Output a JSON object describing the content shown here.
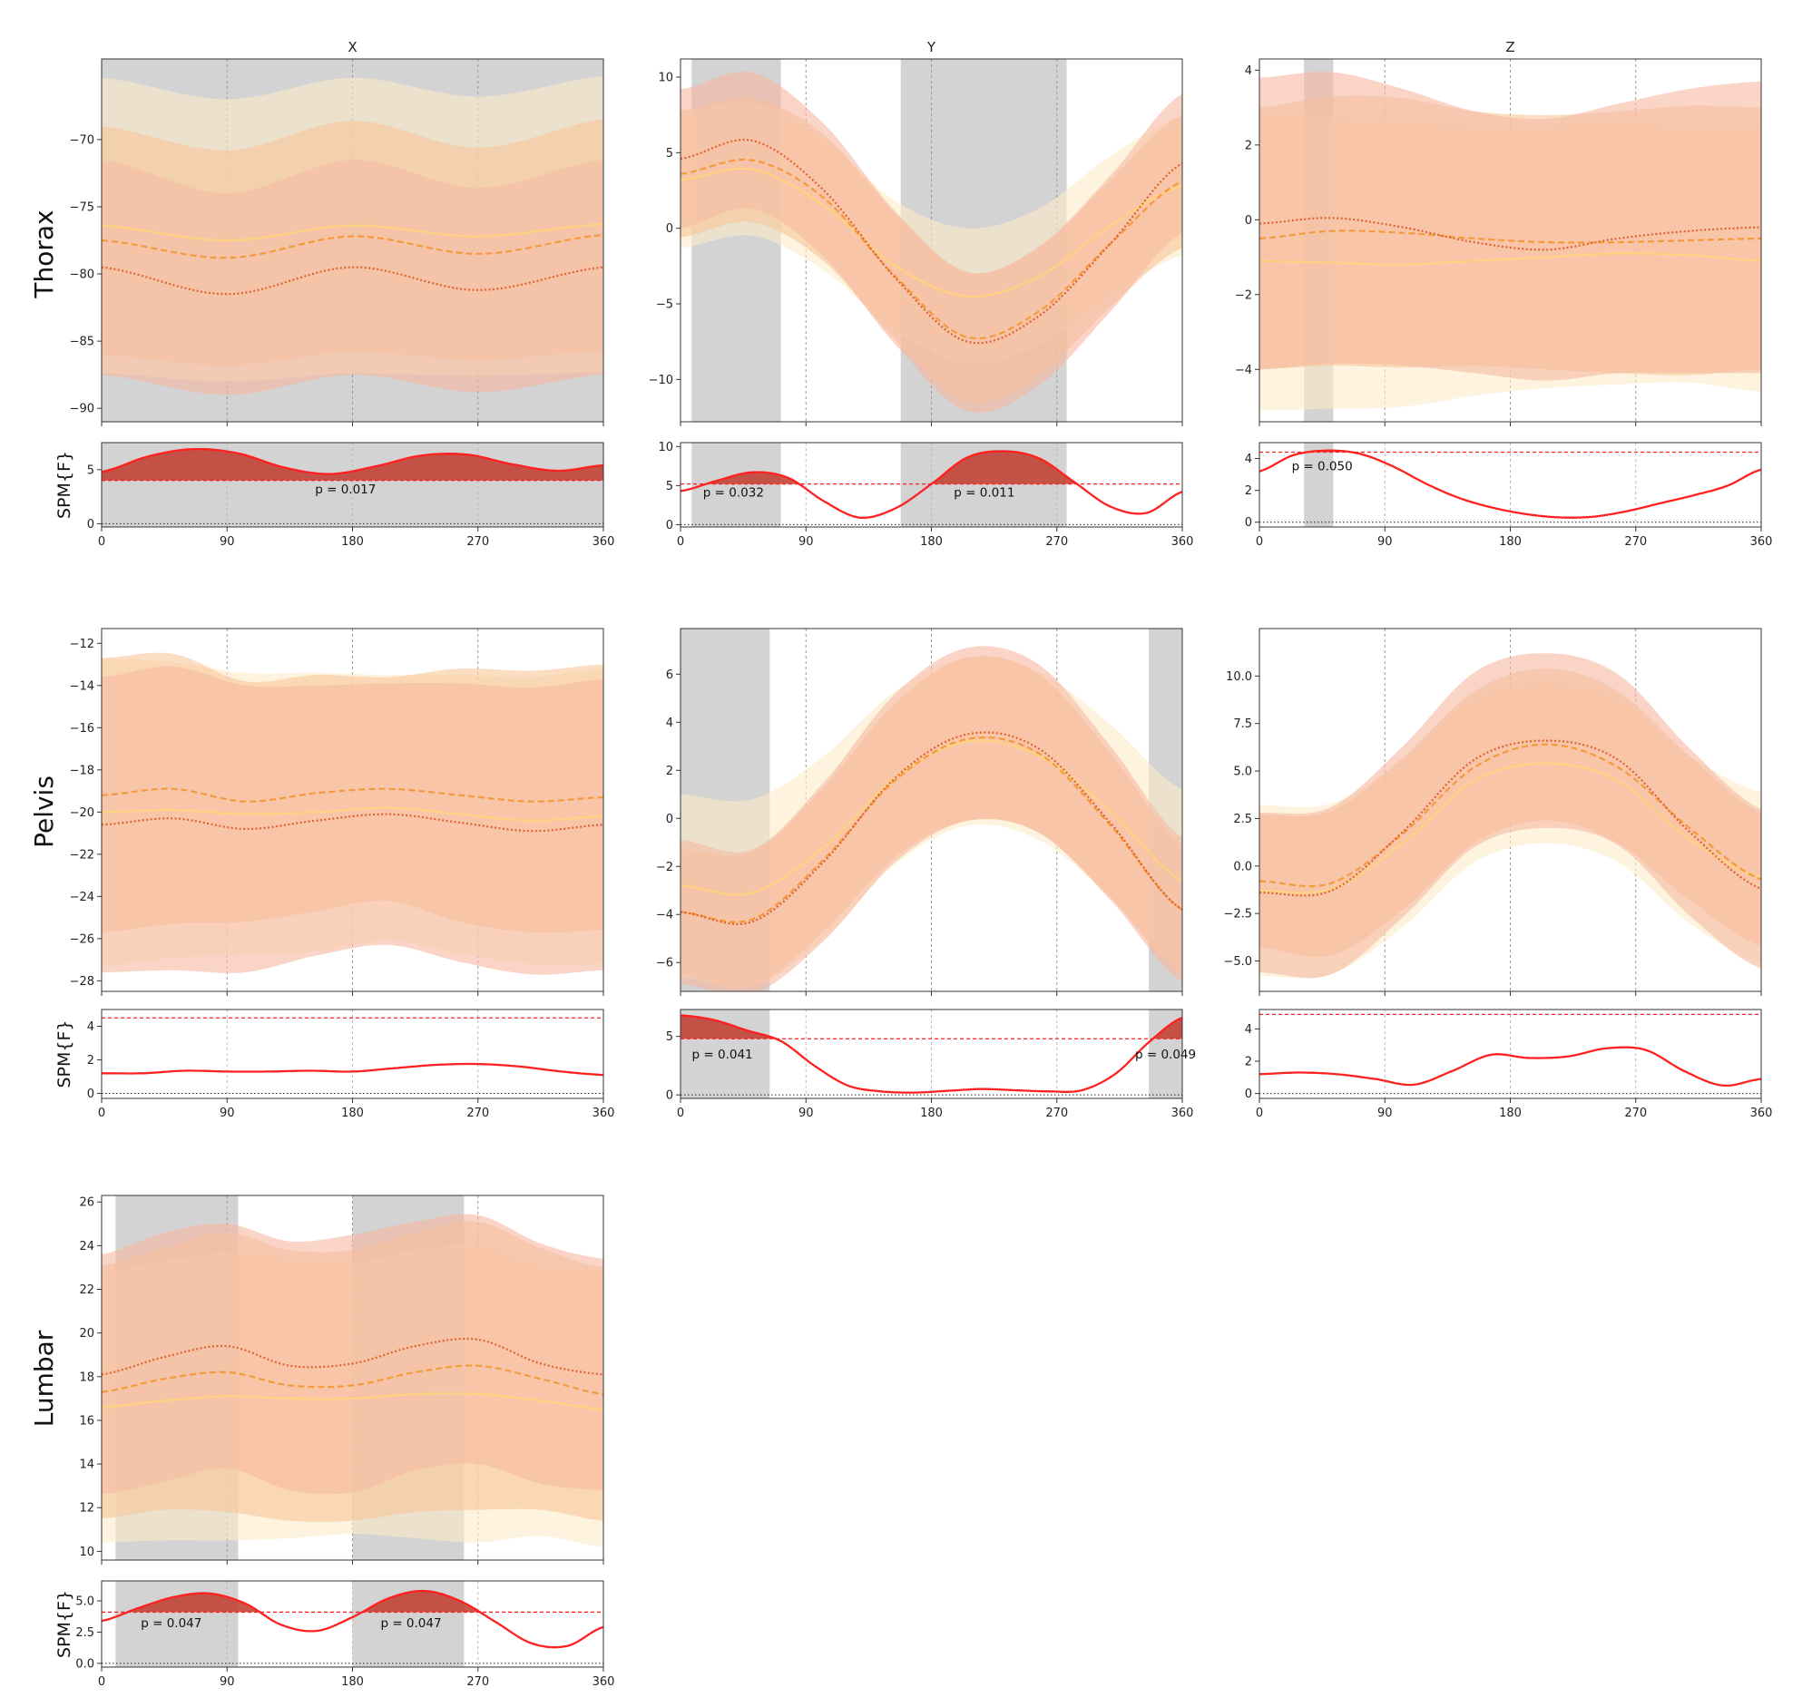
{
  "chart_data": {
    "type": "line",
    "column_titles": [
      "X",
      "Y",
      "Z"
    ],
    "row_labels": [
      "Thorax",
      "Pelvis",
      "Lumbar"
    ],
    "spm_label": "SPM{F}",
    "x_ticks": [
      0,
      90,
      180,
      270,
      360
    ],
    "xlim": [
      0,
      360
    ],
    "series_styles": [
      {
        "name": "series-1",
        "color": "#FFD27F",
        "dash": "solid",
        "band": "#FCEBC8"
      },
      {
        "name": "series-2",
        "color": "#F59A3B",
        "dash": "dashed",
        "band": "#F9C79A"
      },
      {
        "name": "series-3",
        "color": "#E0622E",
        "dash": "dotted",
        "band": "#F7B9A2"
      }
    ],
    "spm_color": "#FF2020",
    "fill_color": "#C0392B",
    "shade_color": "#D3D3D3",
    "panels": [
      {
        "row": "Thorax",
        "col": "X",
        "ylim": [
          -91,
          -64
        ],
        "yticks": [
          -90,
          -85,
          -80,
          -75,
          -70
        ],
        "shade": [
          [
            0,
            360
          ]
        ],
        "series": [
          {
            "name": "series-1",
            "mean": [
              -76.4,
              -77.5,
              -76.4,
              -77.2,
              -76.3
            ],
            "sd": [
              11.0,
              10.5,
              11.0,
              10.4,
              11.0
            ]
          },
          {
            "name": "series-2",
            "mean": [
              -77.5,
              -78.8,
              -77.2,
              -78.5,
              -77.1
            ],
            "sd": [
              8.5,
              8.0,
              8.6,
              7.9,
              8.6
            ]
          },
          {
            "name": "series-3",
            "mean": [
              -79.5,
              -81.5,
              -79.5,
              -81.2,
              -79.5
            ],
            "sd": [
              8.0,
              7.5,
              8.0,
              7.6,
              8.0
            ]
          }
        ],
        "spm": {
          "ylim": [
            -0.3,
            7.5
          ],
          "yticks": [
            0,
            5
          ],
          "threshold": 4.0,
          "curve": [
            4.8,
            6.2,
            6.9,
            6.5,
            5.2,
            4.6,
            5.3,
            6.3,
            6.4,
            5.5,
            4.9,
            5.4
          ],
          "clusters": [
            {
              "label": "p = 0.017",
              "label_x": 175,
              "label_y": 2.8
            }
          ]
        }
      },
      {
        "row": "Thorax",
        "col": "Y",
        "ylim": [
          -12.8,
          11.2
        ],
        "yticks": [
          -10,
          -5,
          0,
          5,
          10
        ],
        "shade": [
          [
            8,
            72
          ],
          [
            158,
            277
          ]
        ],
        "series": [
          {
            "name": "series-1",
            "mean": [
              3.2,
              3.9,
              1.5,
              -2.5,
              -4.5,
              -3.2,
              0.2,
              2.8
            ],
            "sd": [
              4.5,
              4.4,
              4.3,
              4.3,
              4.5,
              4.5,
              4.6,
              4.6
            ]
          },
          {
            "name": "series-2",
            "mean": [
              3.6,
              4.5,
              2.0,
              -3.2,
              -7.2,
              -5.5,
              -1.0,
              3.1
            ],
            "sd": [
              4.2,
              4.1,
              4.2,
              4.2,
              4.3,
              4.2,
              4.2,
              4.4
            ]
          },
          {
            "name": "series-3",
            "mean": [
              4.6,
              5.8,
              2.5,
              -3.3,
              -7.5,
              -5.8,
              -1.0,
              4.3
            ],
            "sd": [
              4.6,
              4.5,
              4.4,
              4.4,
              4.6,
              4.6,
              4.5,
              4.6
            ]
          }
        ],
        "spm": {
          "ylim": [
            -0.3,
            10.5
          ],
          "yticks": [
            0,
            5,
            10
          ],
          "threshold": 5.2,
          "curve": [
            4.3,
            5.6,
            6.7,
            6.0,
            3.0,
            0.9,
            2.1,
            5.2,
            8.6,
            9.4,
            8.5,
            5.4,
            2.3,
            1.5,
            4.2
          ],
          "clusters": [
            {
              "label": "p = 0.032",
              "label_x": 38,
              "label_y": 3.6
            },
            {
              "label": "p = 0.011",
              "label_x": 218,
              "label_y": 3.6
            }
          ]
        }
      },
      {
        "row": "Thorax",
        "col": "Z",
        "ylim": [
          -5.4,
          4.3
        ],
        "yticks": [
          -4,
          -2,
          0,
          2,
          4
        ],
        "shade": [
          [
            32,
            53
          ]
        ],
        "series": [
          {
            "name": "series-1",
            "mean": [
              -1.1,
              -1.15,
              -1.2,
              -1.1,
              -1.0,
              -0.9,
              -0.95,
              -1.1
            ],
            "sd": [
              4.0,
              3.9,
              3.8,
              3.6,
              3.5,
              3.5,
              3.4,
              3.5
            ]
          },
          {
            "name": "series-2",
            "mean": [
              -0.5,
              -0.3,
              -0.35,
              -0.5,
              -0.6,
              -0.6,
              -0.55,
              -0.5
            ],
            "sd": [
              3.5,
              3.6,
              3.6,
              3.4,
              3.4,
              3.5,
              3.6,
              3.5
            ]
          },
          {
            "name": "series-3",
            "mean": [
              -0.1,
              0.05,
              -0.2,
              -0.6,
              -0.8,
              -0.5,
              -0.3,
              -0.2
            ],
            "sd": [
              3.9,
              3.9,
              3.7,
              3.5,
              3.5,
              3.6,
              3.8,
              3.9
            ]
          }
        ],
        "spm": {
          "ylim": [
            -0.3,
            5.0
          ],
          "yticks": [
            0,
            2,
            4
          ],
          "threshold": 4.4,
          "curve": [
            3.2,
            4.2,
            4.5,
            4.3,
            3.5,
            2.4,
            1.5,
            0.9,
            0.5,
            0.3,
            0.35,
            0.7,
            1.2,
            1.7,
            2.3,
            3.3
          ],
          "clusters": [
            {
              "label": "p = 0.050",
              "label_x": 45,
              "label_y": 3.25
            }
          ]
        }
      },
      {
        "row": "Pelvis",
        "col": "X",
        "ylim": [
          -28.5,
          -11.3
        ],
        "yticks": [
          -28,
          -26,
          -24,
          -22,
          -20,
          -18,
          -16,
          -14,
          -12
        ],
        "shade": [],
        "series": [
          {
            "name": "series-1",
            "mean": [
              -20.0,
              -19.9,
              -20.1,
              -20.0,
              -19.8,
              -20.1,
              -20.4,
              -20.2
            ],
            "sd": [
              7.3,
              7.0,
              6.7,
              6.6,
              6.3,
              6.6,
              6.8,
              7.0
            ]
          },
          {
            "name": "series-2",
            "mean": [
              -19.2,
              -18.9,
              -19.5,
              -19.1,
              -18.9,
              -19.2,
              -19.5,
              -19.3
            ],
            "sd": [
              6.5,
              6.4,
              5.7,
              5.6,
              5.3,
              6.0,
              6.2,
              6.3
            ]
          },
          {
            "name": "series-3",
            "mean": [
              -20.6,
              -20.3,
              -20.8,
              -20.4,
              -20.1,
              -20.5,
              -20.9,
              -20.6
            ],
            "sd": [
              7.0,
              7.2,
              6.8,
              6.4,
              6.2,
              6.6,
              6.8,
              6.9
            ]
          }
        ],
        "spm": {
          "ylim": [
            -0.3,
            5.0
          ],
          "yticks": [
            0,
            2,
            4
          ],
          "threshold": 4.5,
          "curve": [
            1.2,
            1.2,
            1.35,
            1.3,
            1.3,
            1.35,
            1.3,
            1.5,
            1.7,
            1.75,
            1.6,
            1.3,
            1.1
          ],
          "clusters": []
        }
      },
      {
        "row": "Pelvis",
        "col": "Y",
        "ylim": [
          -7.2,
          7.9
        ],
        "yticks": [
          -6,
          -4,
          -2,
          0,
          2,
          4,
          6
        ],
        "shade": [
          [
            0,
            64
          ],
          [
            336,
            360
          ]
        ],
        "series": [
          {
            "name": "series-1",
            "mean": [
              -2.8,
              -3.1,
              -1.2,
              1.7,
              3.2,
              2.6,
              0.3,
              -2.6
            ],
            "sd": [
              3.8,
              3.9,
              3.8,
              3.6,
              3.5,
              3.5,
              3.6,
              3.8
            ]
          },
          {
            "name": "series-2",
            "mean": [
              -3.9,
              -4.2,
              -1.7,
              1.6,
              3.3,
              2.7,
              -0.3,
              -3.8
            ],
            "sd": [
              2.6,
              2.8,
              3.0,
              3.2,
              3.4,
              3.3,
              3.0,
              2.7
            ]
          },
          {
            "name": "series-3",
            "mean": [
              -3.9,
              -4.3,
              -1.8,
              1.7,
              3.5,
              2.9,
              -0.2,
              -3.8
            ],
            "sd": [
              3.0,
              3.0,
              3.3,
              3.5,
              3.6,
              3.5,
              3.2,
              3.0
            ]
          }
        ],
        "spm": {
          "ylim": [
            -0.3,
            7.3
          ],
          "yticks": [
            0,
            5
          ],
          "threshold": 4.8,
          "curve": [
            6.8,
            6.4,
            5.5,
            4.6,
            2.5,
            0.8,
            0.3,
            0.2,
            0.35,
            0.5,
            0.4,
            0.3,
            0.4,
            1.8,
            4.5,
            6.6
          ],
          "clusters": [
            {
              "label": "p = 0.041",
              "label_x": 30,
              "label_y": 3.1
            },
            {
              "label": "p = 0.049",
              "label_x": 348,
              "label_y": 3.1
            }
          ]
        }
      },
      {
        "row": "Pelvis",
        "col": "Z",
        "ylim": [
          -6.6,
          12.5
        ],
        "yticks": [
          -5.0,
          -2.5,
          0.0,
          2.5,
          5.0,
          7.5,
          10.0
        ],
        "shade": [],
        "series": [
          {
            "name": "series-1",
            "mean": [
              -1.3,
              -1.2,
              1.2,
              4.5,
              5.4,
              4.5,
              1.4,
              -0.6
            ],
            "sd": [
              4.5,
              4.5,
              4.4,
              4.3,
              4.2,
              4.3,
              4.4,
              4.5
            ]
          },
          {
            "name": "series-2",
            "mean": [
              -0.8,
              -0.9,
              1.7,
              5.2,
              6.4,
              5.2,
              2.0,
              -0.7
            ],
            "sd": [
              3.5,
              3.8,
              4.0,
              4.0,
              4.0,
              4.0,
              3.8,
              3.5
            ]
          },
          {
            "name": "series-3",
            "mean": [
              -1.4,
              -1.3,
              1.8,
              5.6,
              6.6,
              5.6,
              1.8,
              -1.2
            ],
            "sd": [
              4.2,
              4.4,
              4.5,
              4.6,
              4.6,
              4.5,
              4.4,
              4.2
            ]
          }
        ],
        "spm": {
          "ylim": [
            -0.3,
            5.2
          ],
          "yticks": [
            0,
            2,
            4
          ],
          "threshold": 4.9,
          "curve": [
            1.2,
            1.3,
            1.2,
            0.9,
            0.55,
            1.4,
            2.4,
            2.2,
            2.3,
            2.8,
            2.7,
            1.4,
            0.5,
            0.9
          ],
          "clusters": []
        }
      },
      {
        "row": "Lumbar",
        "col": "X",
        "ylim": [
          9.6,
          26.3
        ],
        "yticks": [
          10,
          12,
          14,
          16,
          18,
          20,
          22,
          24,
          26
        ],
        "shade": [
          [
            10,
            98
          ],
          [
            180,
            260
          ]
        ],
        "series": [
          {
            "name": "series-1",
            "mean": [
              16.6,
              16.9,
              17.1,
              17.0,
              17.0,
              17.2,
              17.2,
              16.9,
              16.5
            ],
            "sd": [
              6.2,
              6.4,
              6.6,
              6.4,
              6.2,
              6.6,
              6.8,
              6.2,
              6.3
            ]
          },
          {
            "name": "series-2",
            "mean": [
              17.3,
              17.9,
              18.2,
              17.6,
              17.6,
              18.2,
              18.5,
              17.9,
              17.2
            ],
            "sd": [
              5.8,
              6.0,
              6.4,
              6.2,
              6.2,
              6.4,
              6.6,
              6.0,
              5.8
            ]
          },
          {
            "name": "series-3",
            "mean": [
              18.1,
              18.9,
              19.4,
              18.5,
              18.6,
              19.4,
              19.7,
              18.6,
              18.1
            ],
            "sd": [
              5.5,
              5.7,
              5.6,
              5.7,
              5.9,
              5.7,
              5.7,
              5.5,
              5.3
            ]
          }
        ],
        "spm": {
          "ylim": [
            -0.3,
            6.6
          ],
          "yticks": [
            0.0,
            2.5,
            5.0
          ],
          "threshold": 4.1,
          "curve": [
            3.4,
            4.4,
            5.3,
            5.6,
            4.8,
            3.1,
            2.6,
            3.7,
            5.2,
            5.8,
            5.0,
            3.3,
            1.6,
            1.4,
            2.9
          ],
          "clusters": [
            {
              "label": "p = 0.047",
              "label_x": 50,
              "label_y": 2.9
            },
            {
              "label": "p = 0.047",
              "label_x": 222,
              "label_y": 2.9
            }
          ]
        }
      }
    ]
  }
}
